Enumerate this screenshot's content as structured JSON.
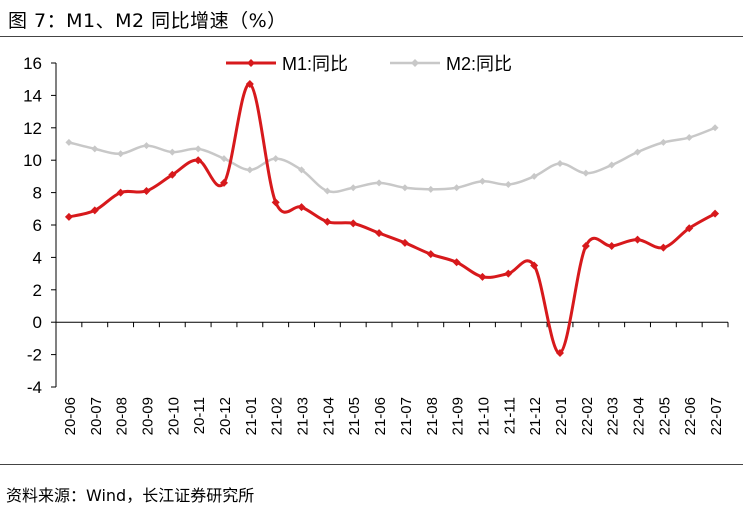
{
  "header": {
    "title": "图 7：M1、M2 同比增速（%）"
  },
  "footer": {
    "source": "资料来源：Wind，长江证券研究所"
  },
  "chart_data": {
    "type": "line",
    "title": "M1、M2 同比增速（%）",
    "xlabel": "",
    "ylabel": "",
    "ylim": [
      -4,
      16
    ],
    "yticks": [
      "16",
      "14",
      "12",
      "10",
      "8",
      "6",
      "4",
      "2",
      "0",
      "-2",
      "-4"
    ],
    "grid": false,
    "legend_position": "top",
    "categories": [
      "20-06",
      "20-07",
      "20-08",
      "20-09",
      "20-10",
      "20-11",
      "20-12",
      "21-01",
      "21-02",
      "21-03",
      "21-04",
      "21-05",
      "21-06",
      "21-07",
      "21-08",
      "21-09",
      "21-10",
      "21-11",
      "21-12",
      "22-01",
      "22-02",
      "22-03",
      "22-04",
      "22-05",
      "22-06",
      "22-07"
    ],
    "series": [
      {
        "name": "M1:同比",
        "color": "#d7191c",
        "values": [
          6.5,
          6.9,
          8.0,
          8.1,
          9.1,
          10.0,
          8.6,
          14.7,
          7.4,
          7.1,
          6.2,
          6.1,
          5.5,
          4.9,
          4.2,
          3.7,
          2.8,
          3.0,
          3.5,
          -1.9,
          4.7,
          4.7,
          5.1,
          4.6,
          5.8,
          6.7
        ]
      },
      {
        "name": "M2:同比",
        "color": "#c8c8c8",
        "values": [
          11.1,
          10.7,
          10.4,
          10.9,
          10.5,
          10.7,
          10.1,
          9.4,
          10.1,
          9.4,
          8.1,
          8.3,
          8.6,
          8.3,
          8.2,
          8.3,
          8.7,
          8.5,
          9.0,
          9.8,
          9.2,
          9.7,
          10.5,
          11.1,
          11.4,
          12.0
        ]
      }
    ]
  }
}
